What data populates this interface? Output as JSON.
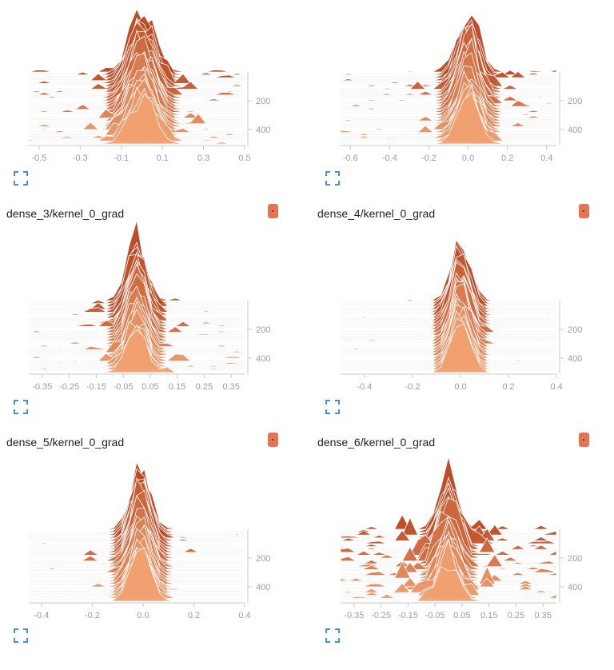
{
  "colors": {
    "near": "#f0a070",
    "far": "#b8441e",
    "tick_text": "#9e9e9e",
    "axis": "#c8c8c8",
    "title": "#212121",
    "menu": "#e8734f",
    "expand": "#4a90d9"
  },
  "icons": {
    "expand": "expand-icon",
    "menu": "menu-dots-icon"
  },
  "chart_data": [
    {
      "type": "histogram-offset",
      "title": "",
      "xlabel": "",
      "ylabel": "",
      "xlim": [
        -0.55,
        0.5
      ],
      "ylim": [
        0,
        500
      ],
      "xticks": [
        "-0.5",
        "-0.3",
        "-0.1",
        "0.1",
        "0.3",
        "0.5"
      ],
      "xtick_values": [
        -0.5,
        -0.3,
        -0.1,
        0.1,
        0.3,
        0.5
      ],
      "yticks": [
        "200",
        "400"
      ],
      "ytick_values": [
        200,
        400
      ],
      "center": 0.0,
      "spread": 0.34,
      "peak": 0.95,
      "scatter": 0.6,
      "seed": 11
    },
    {
      "type": "histogram-offset",
      "title": "",
      "xlabel": "",
      "ylabel": "",
      "xlim": [
        -0.65,
        0.45
      ],
      "ylim": [
        0,
        500
      ],
      "xticks": [
        "-0.6",
        "-0.4",
        "-0.2",
        "0.0",
        "0.2",
        "0.4"
      ],
      "xtick_values": [
        -0.6,
        -0.4,
        -0.2,
        0.0,
        0.2,
        0.4
      ],
      "yticks": [
        "200",
        "400"
      ],
      "ytick_values": [
        200,
        400
      ],
      "center": 0.0,
      "spread": 0.3,
      "peak": 0.92,
      "scatter": 0.5,
      "seed": 23
    },
    {
      "type": "histogram-offset",
      "title": "dense_3/kernel_0_grad",
      "xlabel": "",
      "ylabel": "",
      "xlim": [
        -0.4,
        0.4
      ],
      "ylim": [
        0,
        500
      ],
      "xticks": [
        "-0.35",
        "-0.25",
        "-0.15",
        "-0.05",
        "0.05",
        "0.15",
        "0.25",
        "0.35"
      ],
      "xtick_values": [
        -0.35,
        -0.25,
        -0.15,
        -0.05,
        0.05,
        0.15,
        0.25,
        0.35
      ],
      "yticks": [
        "200",
        "400"
      ],
      "ytick_values": [
        200,
        400
      ],
      "center": 0.0,
      "spread": 0.2,
      "peak": 0.92,
      "scatter": 0.45,
      "seed": 37
    },
    {
      "type": "histogram-offset",
      "title": "dense_4/kernel_0_grad",
      "xlabel": "",
      "ylabel": "",
      "xlim": [
        -0.5,
        0.4
      ],
      "ylim": [
        0,
        500
      ],
      "xticks": [
        "-0.4",
        "-0.2",
        "0.0",
        "0.2",
        "0.4"
      ],
      "xtick_values": [
        -0.4,
        -0.2,
        0.0,
        0.2,
        0.4
      ],
      "yticks": [
        "200",
        "400"
      ],
      "ytick_values": [
        200,
        400
      ],
      "center": 0.0,
      "spread": 0.22,
      "peak": 0.95,
      "scatter": 0.3,
      "seed": 41
    },
    {
      "type": "histogram-offset",
      "title": "dense_5/kernel_0_grad",
      "xlabel": "",
      "ylabel": "",
      "xlim": [
        -0.45,
        0.4
      ],
      "ylim": [
        0,
        500
      ],
      "xticks": [
        "-0.4",
        "-0.2",
        "0.0",
        "0.2",
        "0.4"
      ],
      "xtick_values": [
        -0.4,
        -0.2,
        0.0,
        0.2,
        0.4
      ],
      "yticks": [
        "200",
        "400"
      ],
      "ytick_values": [
        200,
        400
      ],
      "center": -0.01,
      "spread": 0.22,
      "peak": 0.95,
      "scatter": 0.3,
      "seed": 53
    },
    {
      "type": "histogram-offset",
      "title": "dense_6/kernel_0_grad",
      "xlabel": "",
      "ylabel": "",
      "xlim": [
        -0.4,
        0.4
      ],
      "ylim": [
        0,
        500
      ],
      "xticks": [
        "-0.35",
        "-0.25",
        "-0.15",
        "-0.05",
        "0.05",
        "0.15",
        "0.25",
        "0.35"
      ],
      "xtick_values": [
        -0.35,
        -0.25,
        -0.15,
        -0.05,
        0.05,
        0.15,
        0.25,
        0.35
      ],
      "yticks": [
        "200",
        "400"
      ],
      "ytick_values": [
        200,
        400
      ],
      "center": 0.0,
      "spread": 0.2,
      "peak": 0.75,
      "scatter": 1.0,
      "seed": 67
    }
  ]
}
